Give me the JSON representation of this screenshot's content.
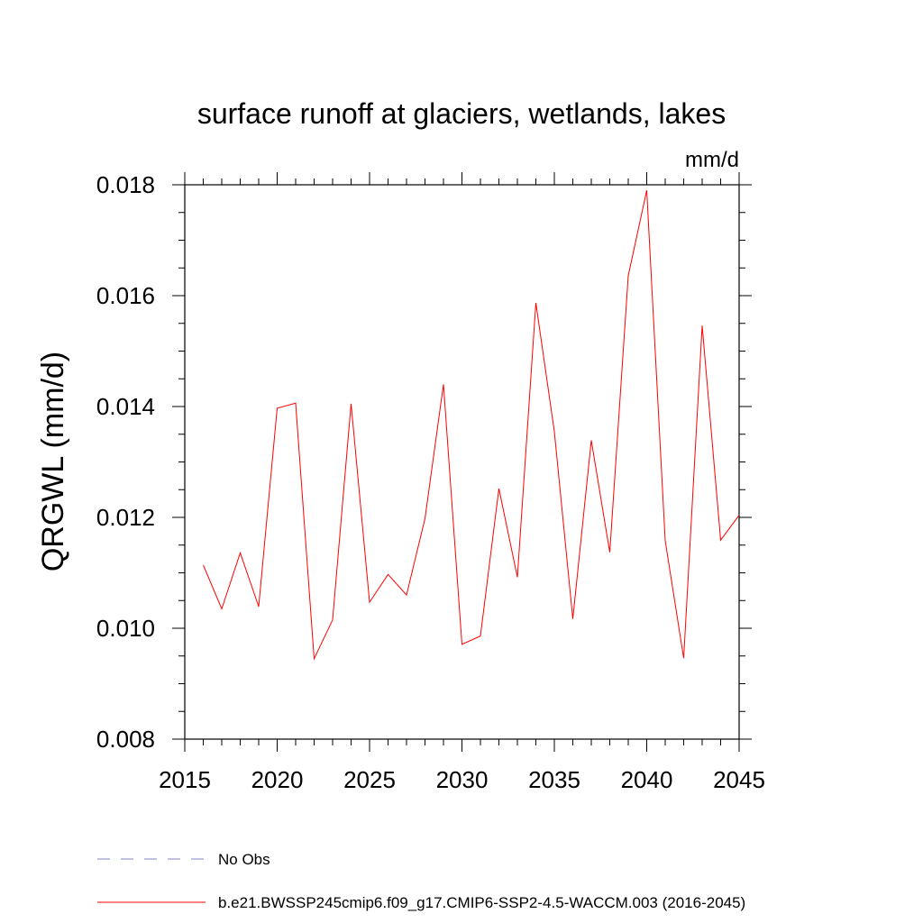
{
  "chart_data": {
    "type": "line",
    "title": "surface runoff at glaciers, wetlands, lakes",
    "units_label": "mm/d",
    "ylabel": "QRGWL  (mm/d)",
    "xlabel": "",
    "xlim": [
      2015,
      2045
    ],
    "ylim": [
      0.008,
      0.018
    ],
    "x_ticks": [
      2015,
      2020,
      2025,
      2030,
      2035,
      2040,
      2045
    ],
    "x_tick_labels": [
      "2015",
      "2020",
      "2025",
      "2030",
      "2035",
      "2040",
      "2045"
    ],
    "y_ticks": [
      0.008,
      0.01,
      0.012,
      0.014,
      0.016,
      0.018
    ],
    "y_tick_labels": [
      "0.008",
      "0.010",
      "0.012",
      "0.014",
      "0.016",
      "0.018"
    ],
    "grid": false,
    "series": [
      {
        "name": "b.e21.BWSSP245cmip6.f09_g17.CMIP6-SSP2-4.5-WACCM.003 (2016-2045)",
        "color": "#ff0000",
        "dash": "solid",
        "x": [
          2016,
          2017,
          2018,
          2019,
          2020,
          2021,
          2022,
          2023,
          2024,
          2025,
          2026,
          2027,
          2028,
          2029,
          2030,
          2031,
          2032,
          2033,
          2034,
          2035,
          2036,
          2037,
          2038,
          2039,
          2040,
          2041,
          2042,
          2043,
          2044,
          2045
        ],
        "values": [
          0.01114,
          0.01035,
          0.01136,
          0.01039,
          0.01397,
          0.01406,
          0.00945,
          0.01015,
          0.01405,
          0.01047,
          0.01097,
          0.0106,
          0.01198,
          0.0144,
          0.00971,
          0.00986,
          0.01252,
          0.01092,
          0.01587,
          0.01355,
          0.01017,
          0.01339,
          0.01137,
          0.01636,
          0.0179,
          0.01158,
          0.00946,
          0.01546,
          0.01159,
          0.01204
        ]
      }
    ],
    "legend": [
      {
        "label": "No Obs",
        "color": "#8080c0",
        "dash": "dashed"
      },
      {
        "label": "b.e21.BWSSP245cmip6.f09_g17.CMIP6-SSP2-4.5-WACCM.003 (2016-2045)",
        "color": "#ff0000",
        "dash": "solid"
      }
    ],
    "legend_position": "bottom-left"
  }
}
